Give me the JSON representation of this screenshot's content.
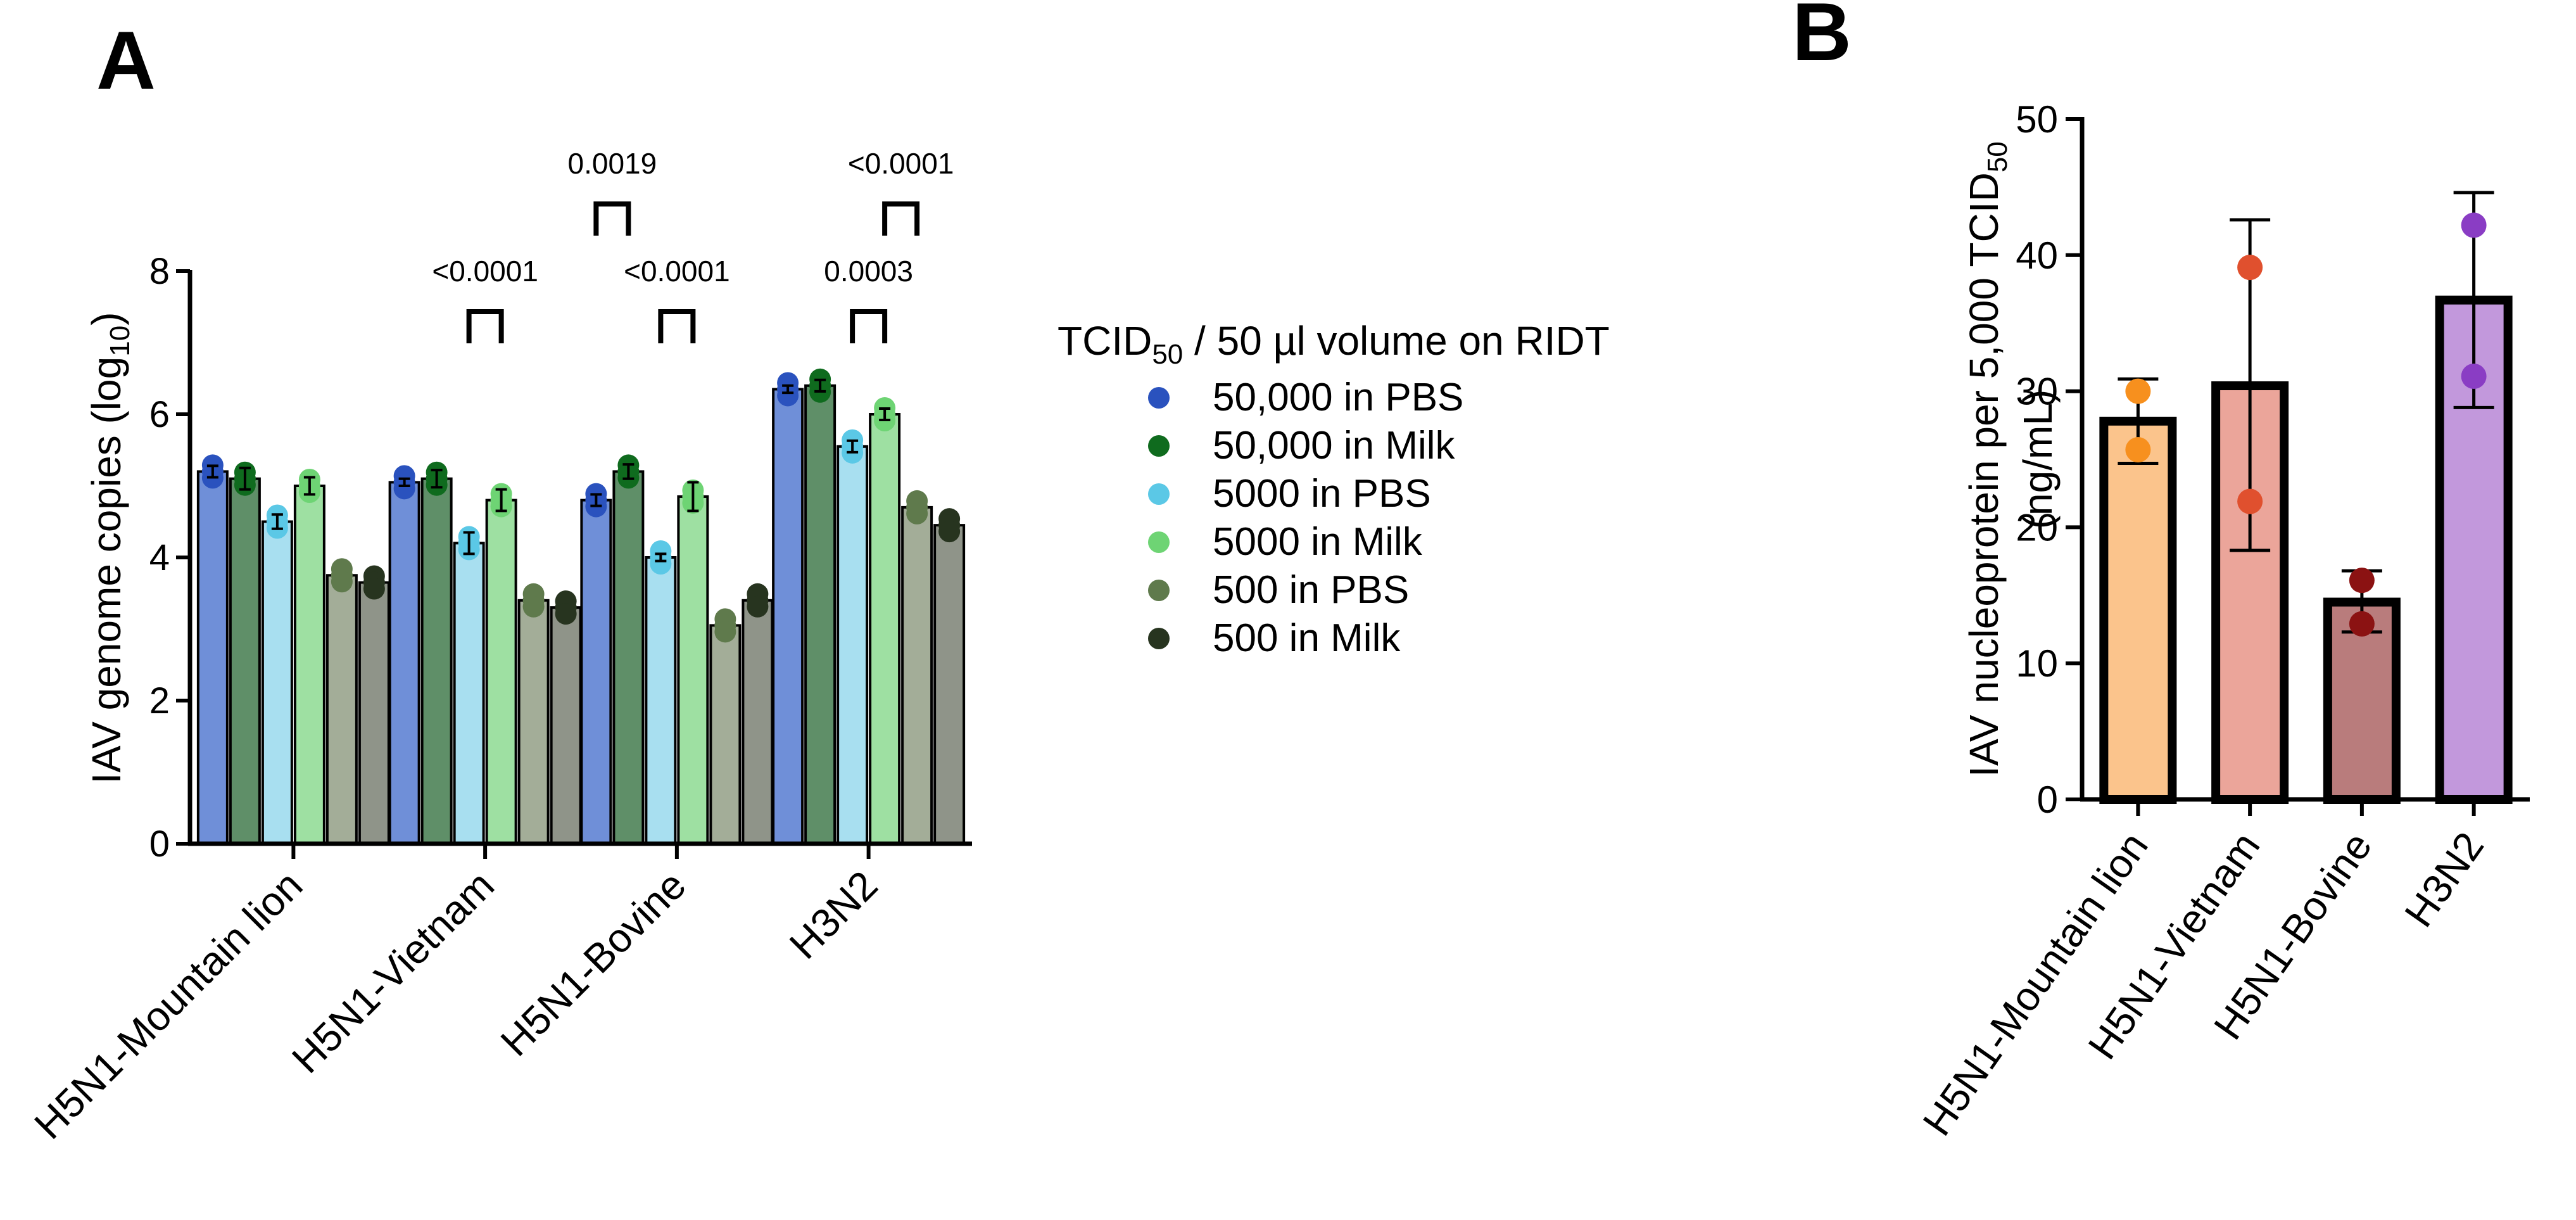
{
  "figure": {
    "panel_a_label": "A",
    "panel_b_label": "B"
  },
  "chart_data": [
    {
      "panel": "A",
      "type": "bar",
      "ylabel_main": "IAV genome copies (log",
      "ylabel_sub": "10",
      "ylabel_tail": ")",
      "ylim": [
        0,
        8
      ],
      "yticks": [
        "0",
        "2",
        "4",
        "6",
        "8"
      ],
      "categories": [
        "H5N1-Mountain lion",
        "H5N1-Vietnam",
        "H5N1-Bovine",
        "H3N2"
      ],
      "legend_title_main": "TCID",
      "legend_title_sub": "50",
      "legend_title_tail": " / 50 µl volume on RIDT",
      "series": [
        {
          "name": "50,000 in PBS",
          "color": "#2a52be",
          "bar_color": "#6f8fd8",
          "values": [
            5.2,
            5.05,
            4.8,
            6.35
          ],
          "err": [
            0.08,
            0.05,
            0.08,
            0.05
          ]
        },
        {
          "name": "50,000 in Milk",
          "color": "#0f6b1e",
          "bar_color": "#5f8f68",
          "values": [
            5.1,
            5.1,
            5.2,
            6.4
          ],
          "err": [
            0.15,
            0.12,
            0.1,
            0.08
          ]
        },
        {
          "name": "5000 in PBS",
          "color": "#5bc8e6",
          "bar_color": "#a8dff0",
          "values": [
            4.5,
            4.2,
            4.0,
            5.55
          ],
          "err": [
            0.1,
            0.15,
            0.05,
            0.08
          ]
        },
        {
          "name": "5000 in Milk",
          "color": "#6ed474",
          "bar_color": "#9ee0a2",
          "values": [
            5.0,
            4.8,
            4.85,
            6.0
          ],
          "err": [
            0.12,
            0.15,
            0.2,
            0.08
          ]
        },
        {
          "name": "500 in PBS",
          "color": "#5f7a4c",
          "bar_color": "#a3ad98",
          "values": [
            3.75,
            3.4,
            3.05,
            4.7
          ],
          "err": [
            0,
            0,
            0,
            0
          ]
        },
        {
          "name": "500 in Milk",
          "color": "#27341f",
          "bar_color": "#8f9489",
          "values": [
            3.65,
            3.3,
            3.4,
            4.45
          ],
          "err": [
            0,
            0,
            0,
            0
          ]
        }
      ],
      "annotations": [
        {
          "text": "<0.0001",
          "category": 1,
          "from_series": 2,
          "to_series": 3
        },
        {
          "text": "0.0019",
          "category": 2,
          "from_series": 0,
          "to_series": 1
        },
        {
          "text": "<0.0001",
          "category": 2,
          "from_series": 2,
          "to_series": 3
        },
        {
          "text": "<0.0001",
          "category": 3,
          "from_series": 3,
          "to_series": 4
        },
        {
          "text": "0.0003",
          "category": 3,
          "from_series": 2,
          "to_series": 3
        }
      ]
    },
    {
      "panel": "B",
      "type": "bar",
      "ylabel_main": "IAV nucleoprotein per 5,000 TCID",
      "ylabel_sub": "50",
      "ylabel_line2": "(ng/mL)",
      "ylim": [
        0,
        50
      ],
      "yticks": [
        "0",
        "10",
        "20",
        "30",
        "40",
        "50"
      ],
      "categories": [
        "H5N1-Mountain lion",
        "H5N1-Vietnam",
        "H5N1-Bovine",
        "H3N2"
      ],
      "values": [
        27.8,
        30.4,
        14.5,
        36.7
      ],
      "error_low": [
        24.7,
        18.3,
        12.3,
        28.8
      ],
      "error_high": [
        30.9,
        42.6,
        16.8,
        44.6
      ],
      "points": [
        [
          30.0,
          25.7
        ],
        [
          39.1,
          21.9
        ],
        [
          16.1,
          12.9
        ],
        [
          42.2,
          31.1
        ]
      ],
      "bar_colors": [
        "#fbc48c",
        "#eba59a",
        "#b97c7c",
        "#c298dc"
      ],
      "point_colors": [
        "#f7901e",
        "#e0502e",
        "#8b1212",
        "#8a3dc4"
      ]
    }
  ]
}
